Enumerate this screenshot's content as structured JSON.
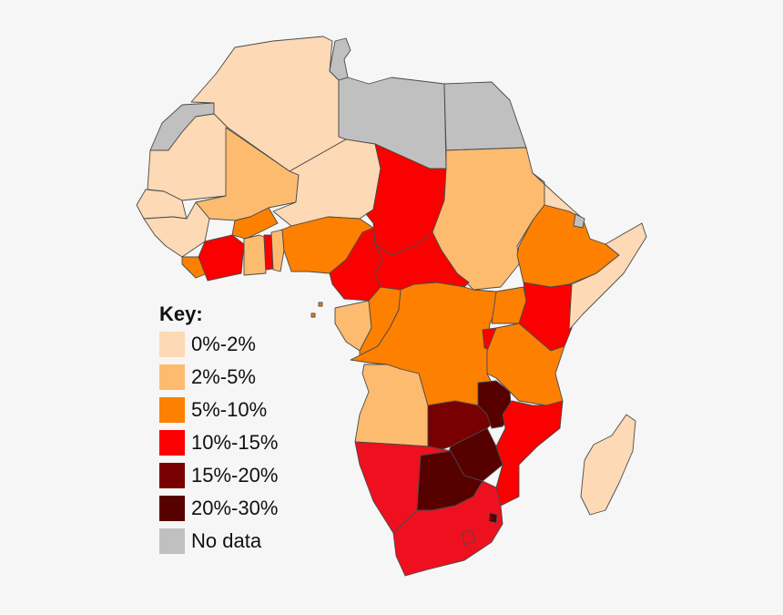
{
  "legend": {
    "title": "Key:",
    "items": [
      {
        "id": "lvl-0-2",
        "label": "0%-2%",
        "color": "#fdd9b5"
      },
      {
        "id": "lvl-2-5",
        "label": "2%-5%",
        "color": "#fdbb70"
      },
      {
        "id": "lvl-5-10",
        "label": "5%-10%",
        "color": "#fd8001"
      },
      {
        "id": "lvl-10-15",
        "label": "10%-15%",
        "color": "#fb0000"
      },
      {
        "id": "lvl-15-20",
        "label": "15%-20%",
        "color": "#780000"
      },
      {
        "id": "lvl-20-30",
        "label": "20%-30%",
        "color": "#560000"
      },
      {
        "id": "no-data",
        "label": "No data",
        "color": "#c0c0c0"
      }
    ]
  }
}
